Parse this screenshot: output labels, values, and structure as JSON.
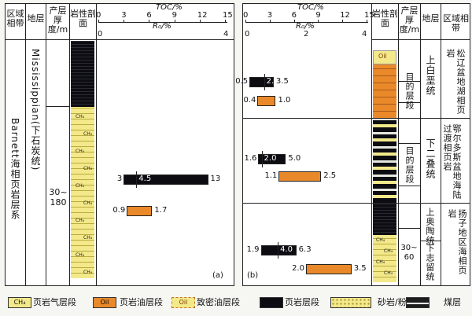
{
  "panel_a": {
    "headers": {
      "region": "区域相带",
      "stratum": "地层",
      "thickness": "产层厚度/m",
      "litho": "岩性剖面"
    },
    "scale_toc_label": "TOC/%",
    "scale_ro_label": "R₀/%",
    "toc_ticks": [
      "0",
      "3",
      "6",
      "9",
      "12",
      "15"
    ],
    "ro_ticks": [
      "0",
      "4"
    ],
    "region_text": "Barnett海相页岩层系",
    "stratum_text": "Mississippian(下石炭统)",
    "thickness_text": "30~180",
    "ch4": "CH₄",
    "toc_bar": {
      "min": "3",
      "avg": "4.5",
      "max": "13"
    },
    "ro_bar": {
      "min": "0.9",
      "max": "1.7"
    },
    "panel_label": "(a)"
  },
  "panel_b": {
    "headers": {
      "litho": "岩性剖面",
      "thickness": "产层厚度/m",
      "stratum": "地层",
      "region": "区域相带"
    },
    "scale_toc_label": "TOC/%",
    "scale_ro_label": "R₀/%",
    "toc_ticks": [
      "0",
      "3",
      "6",
      "9",
      "12",
      "15"
    ],
    "ro_ticks": [
      "0",
      "2",
      "4"
    ],
    "panel_label": "(b)",
    "oil_mark": "Oil",
    "ch4": "CH₄",
    "sections": [
      {
        "target": "目的层段",
        "stratum": "上白垩统",
        "region": "松辽盆地湖相页岩",
        "toc": {
          "min": "0.5",
          "avg": "2.3",
          "max": "3.5"
        },
        "ro": {
          "min": "0.4",
          "max": "1.0"
        }
      },
      {
        "target": "目的层段",
        "stratum": "下二叠统",
        "region": "鄂尔多斯盆地海陆过渡相页岩",
        "toc": {
          "min": "1.6",
          "avg": "2.0",
          "max": "5.0"
        },
        "ro": {
          "min": "1.1",
          "max": "2.5"
        }
      },
      {
        "thickness": "30~60",
        "stratum_upper": "上奥陶统",
        "stratum_lower": "下志留统",
        "region": "扬子地区海相页岩",
        "toc": {
          "min": "1.9",
          "avg": "4.0",
          "max": "6.3"
        },
        "ro": {
          "min": "2.0",
          "max": "3.5"
        }
      }
    ]
  },
  "legend": [
    {
      "symbol": "CH₄",
      "label": "页岩气层段",
      "color": "#f3e98a"
    },
    {
      "symbol": "Oil",
      "label": "页岩油层段",
      "color": "#e9892a"
    },
    {
      "symbol": "Oil",
      "label": "致密油层段",
      "color": "#f3e98a"
    },
    {
      "symbol": "",
      "label": "页岩层段",
      "color": "#0c0c12"
    },
    {
      "symbol": "",
      "label": "砂岩/粉砂岩",
      "color": "#f3e98a"
    },
    {
      "symbol": "",
      "label": "煤层",
      "color": "#1d1d1d"
    }
  ]
}
